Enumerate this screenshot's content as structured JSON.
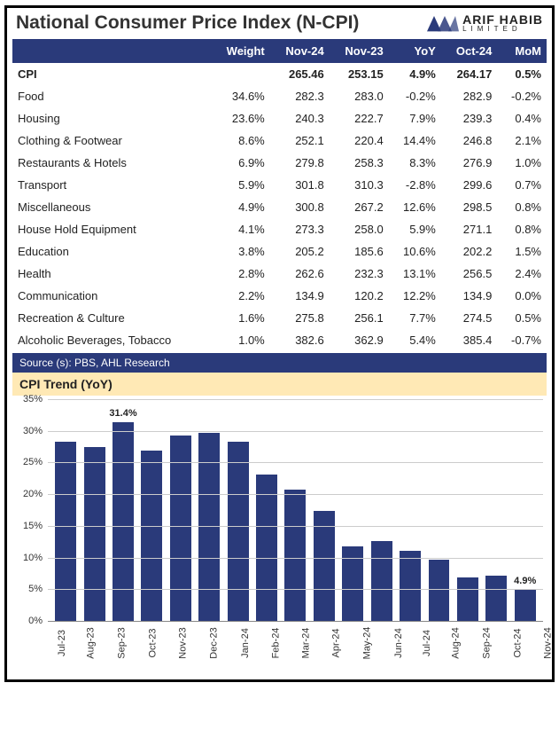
{
  "brand": {
    "name": "ARIF HABIB",
    "sub": "LIMITED"
  },
  "title": "National Consumer Price Index (N-CPI)",
  "source": "Source (s): PBS, AHL Research",
  "table": {
    "columns": [
      "",
      "Weight",
      "Nov-24",
      "Nov-23",
      "YoY",
      "Oct-24",
      "MoM"
    ],
    "rows": [
      {
        "bold": true,
        "cells": [
          "CPI",
          "",
          "265.46",
          "253.15",
          "4.9%",
          "264.17",
          "0.5%"
        ]
      },
      {
        "bold": false,
        "cells": [
          "Food",
          "34.6%",
          "282.3",
          "283.0",
          "-0.2%",
          "282.9",
          "-0.2%"
        ]
      },
      {
        "bold": false,
        "cells": [
          "Housing",
          "23.6%",
          "240.3",
          "222.7",
          "7.9%",
          "239.3",
          "0.4%"
        ]
      },
      {
        "bold": false,
        "cells": [
          "Clothing & Footwear",
          "8.6%",
          "252.1",
          "220.4",
          "14.4%",
          "246.8",
          "2.1%"
        ]
      },
      {
        "bold": false,
        "cells": [
          "Restaurants & Hotels",
          "6.9%",
          "279.8",
          "258.3",
          "8.3%",
          "276.9",
          "1.0%"
        ]
      },
      {
        "bold": false,
        "cells": [
          "Transport",
          "5.9%",
          "301.8",
          "310.3",
          "-2.8%",
          "299.6",
          "0.7%"
        ]
      },
      {
        "bold": false,
        "cells": [
          "Miscellaneous",
          "4.9%",
          "300.8",
          "267.2",
          "12.6%",
          "298.5",
          "0.8%"
        ]
      },
      {
        "bold": false,
        "cells": [
          "House Hold Equipment",
          "4.1%",
          "273.3",
          "258.0",
          "5.9%",
          "271.1",
          "0.8%"
        ]
      },
      {
        "bold": false,
        "cells": [
          "Education",
          "3.8%",
          "205.2",
          "185.6",
          "10.6%",
          "202.2",
          "1.5%"
        ]
      },
      {
        "bold": false,
        "cells": [
          "Health",
          "2.8%",
          "262.6",
          "232.3",
          "13.1%",
          "256.5",
          "2.4%"
        ]
      },
      {
        "bold": false,
        "cells": [
          "Communication",
          "2.2%",
          "134.9",
          "120.2",
          "12.2%",
          "134.9",
          "0.0%"
        ]
      },
      {
        "bold": false,
        "cells": [
          "Recreation & Culture",
          "1.6%",
          "275.8",
          "256.1",
          "7.7%",
          "274.5",
          "0.5%"
        ]
      },
      {
        "bold": false,
        "cells": [
          "Alcoholic Beverages, Tobacco",
          "1.0%",
          "382.6",
          "362.9",
          "5.4%",
          "385.4",
          "-0.7%"
        ]
      }
    ]
  },
  "chart": {
    "title": "CPI Trend (YoY)",
    "type": "bar",
    "bar_color": "#2a3a7a",
    "grid_color": "#cccccc",
    "axis_color": "#888888",
    "label_color": "#333333",
    "background_color": "#ffffff",
    "font_size": 11,
    "y_max": 35,
    "y_step": 5,
    "y_ticks": [
      "0%",
      "5%",
      "10%",
      "15%",
      "20%",
      "25%",
      "30%",
      "35%"
    ],
    "categories": [
      "Jul-23",
      "Aug-23",
      "Sep-23",
      "Oct-23",
      "Nov-23",
      "Dec-23",
      "Jan-24",
      "Feb-24",
      "Mar-24",
      "Apr-24",
      "May-24",
      "Jun-24",
      "Jul-24",
      "Aug-24",
      "Sep-24",
      "Oct-24",
      "Nov-24"
    ],
    "values": [
      28.3,
      27.4,
      31.4,
      26.9,
      29.2,
      29.7,
      28.3,
      23.1,
      20.7,
      17.3,
      11.8,
      12.6,
      11.1,
      9.6,
      6.9,
      7.2,
      4.9
    ],
    "annotations": [
      {
        "index": 2,
        "text": "31.4%"
      },
      {
        "index": 16,
        "text": "4.9%"
      }
    ]
  }
}
